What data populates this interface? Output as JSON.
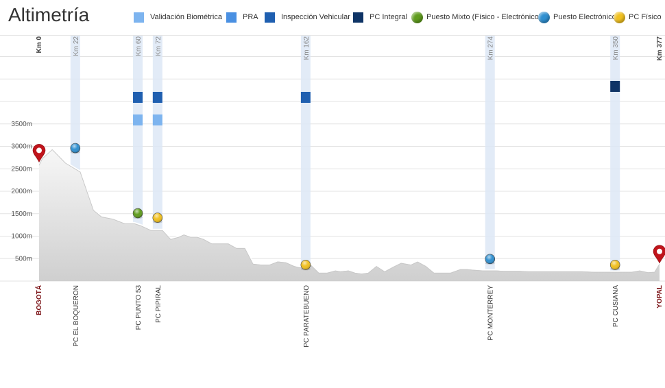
{
  "header": {
    "title": "Altimetría"
  },
  "legend": [
    {
      "label": "Validación Biométrica",
      "shape": "square",
      "color": "#7db4ef"
    },
    {
      "label": "PRA",
      "shape": "square",
      "color": "#4a90e2"
    },
    {
      "label": "Inspección Vehicular",
      "shape": "square",
      "color": "#1f5fb0"
    },
    {
      "label": "PC Integral",
      "shape": "square",
      "color": "#0f3466"
    },
    {
      "label": "Puesto Mixto (Físico - Electrónico)",
      "shape": "circle",
      "color": "#5f9c1d"
    },
    {
      "label": "Puesto Electrónico",
      "shape": "circle",
      "color": "#2f8fd0"
    },
    {
      "label": "PC Físico",
      "shape": "circle",
      "color": "#f0c020"
    }
  ],
  "chart_data": {
    "type": "area",
    "title": "Altimetría",
    "xlabel": "",
    "ylabel": "",
    "xlim": [
      0,
      377
    ],
    "ylim": [
      0,
      5500
    ],
    "y_ticks": [
      500,
      1000,
      1500,
      2000,
      2500,
      3000,
      3500
    ],
    "y_tick_labels": [
      "500m",
      "1000m",
      "1500m",
      "2000m",
      "2500m",
      "3000m",
      "3500m"
    ],
    "grid": true,
    "legend_position": "top",
    "series": [
      {
        "x": [
          0,
          2,
          8,
          16,
          25,
          33,
          38,
          45,
          52,
          58,
          62,
          68,
          75,
          80,
          85,
          88,
          92,
          96,
          100,
          105,
          110,
          115,
          120,
          125,
          130,
          135,
          140,
          145,
          150,
          155,
          158,
          162,
          165,
          170,
          175,
          180,
          183,
          188,
          192,
          196,
          200,
          205,
          210,
          215,
          220,
          226,
          230,
          235,
          240,
          245,
          250,
          256,
          260,
          266,
          270,
          274,
          278,
          282,
          287,
          292,
          297,
          302,
          307,
          312,
          318,
          324,
          330,
          337,
          343,
          350,
          355,
          360,
          365,
          370,
          374,
          377
        ],
        "y": [
          2600,
          2750,
          2950,
          2650,
          2450,
          1600,
          1450,
          1400,
          1300,
          1300,
          1250,
          1150,
          1150,
          950,
          1000,
          1050,
          1000,
          1000,
          950,
          850,
          850,
          850,
          750,
          750,
          400,
          380,
          380,
          450,
          430,
          350,
          320,
          330,
          380,
          200,
          200,
          250,
          230,
          250,
          200,
          180,
          200,
          350,
          230,
          330,
          420,
          380,
          450,
          350,
          200,
          200,
          200,
          280,
          280,
          260,
          250,
          250,
          250,
          240,
          240,
          240,
          230,
          230,
          230,
          230,
          230,
          230,
          230,
          220,
          220,
          220,
          220,
          220,
          250,
          210,
          220,
          400
        ]
      }
    ],
    "endpoints": [
      {
        "km": 0,
        "name": "BOGOTÁ",
        "km_label": "Km 0",
        "altitude": 2650
      },
      {
        "km": 377,
        "name": "YOPAL",
        "km_label": "Km 377",
        "altitude": 400
      }
    ],
    "stations": [
      {
        "km": 22,
        "km_label": "Km 22",
        "name": "PC EL BOQUERON",
        "marker": "Puesto Electrónico",
        "marker_color": "#2f8fd0",
        "altitude": 2900,
        "services": []
      },
      {
        "km": 60,
        "km_label": "Km 60",
        "name": "PC PUNTO 53",
        "marker": "Puesto Mixto (Físico - Electrónico)",
        "marker_color": "#5f9c1d",
        "altitude": 1450,
        "services": [
          "Inspección Vehicular",
          "Validación Biométrica"
        ]
      },
      {
        "km": 72,
        "km_label": "Km 72",
        "name": "PC PIPIRAL",
        "marker": "PC Físico",
        "marker_color": "#f0c020",
        "altitude": 1350,
        "services": [
          "Inspección Vehicular",
          "Validación Biométrica"
        ]
      },
      {
        "km": 162,
        "km_label": "Km 162",
        "name": "PC PARATEBUENO",
        "marker": "PC Físico",
        "marker_color": "#f0c020",
        "altitude": 300,
        "services": [
          "Inspección Vehicular"
        ]
      },
      {
        "km": 274,
        "km_label": "Km 274",
        "name": "PC MONTERREY",
        "marker": "Puesto Electrónico",
        "marker_color": "#2f8fd0",
        "altitude": 430,
        "services": []
      },
      {
        "km": 350,
        "km_label": "Km 350",
        "name": "PC CUSIANA",
        "marker": "PC Físico",
        "marker_color": "#f0c020",
        "altitude": 300,
        "services": [
          "PC Integral"
        ]
      }
    ]
  }
}
